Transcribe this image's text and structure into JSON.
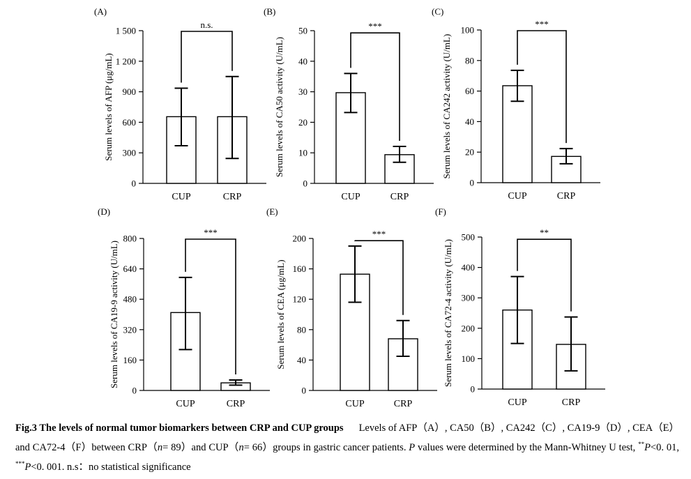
{
  "chart_data": [
    {
      "panel": "(A)",
      "type": "bar",
      "categories": [
        "CUP",
        "CRP"
      ],
      "values": [
        655,
        655
      ],
      "errors": [
        [
          370,
          935
        ],
        [
          245,
          1050
        ]
      ],
      "ylabel": "Serum levels of AFP (μg/mL)",
      "ylim": [
        0,
        1500
      ],
      "ticks": [
        0,
        300,
        600,
        900,
        1200,
        1500
      ],
      "tick_labels": [
        "0",
        "300",
        "600",
        "900",
        "1 200",
        "1 500"
      ],
      "sig": "n.s.",
      "bracket_y": 1500
    },
    {
      "panel": "(B)",
      "type": "bar",
      "categories": [
        "CUP",
        "CRP"
      ],
      "values": [
        29.7,
        9.4
      ],
      "errors": [
        [
          23.2,
          36.0
        ],
        [
          6.9,
          12.1
        ]
      ],
      "ylabel": "Serum levels of CA50 activity (U/mL)",
      "ylim": [
        0,
        50
      ],
      "ticks": [
        0,
        10,
        20,
        30,
        40,
        50
      ],
      "tick_labels": [
        "0",
        "10",
        "20",
        "30",
        "40",
        "50"
      ],
      "sig": "***",
      "bracket_y": 49.5
    },
    {
      "panel": "(C)",
      "type": "bar",
      "categories": [
        "CUP",
        "CRP"
      ],
      "values": [
        63.5,
        17.2
      ],
      "errors": [
        [
          53.3,
          73.6
        ],
        [
          12.4,
          22.3
        ]
      ],
      "ylabel": "Serum levels of CA242 activity (U/mL)",
      "ylim": [
        0,
        100
      ],
      "ticks": [
        0,
        20,
        40,
        60,
        80,
        100
      ],
      "tick_labels": [
        "0",
        "20",
        "40",
        "60",
        "80",
        "100"
      ],
      "sig": "***",
      "bracket_y": 100
    },
    {
      "panel": "(D)",
      "type": "bar",
      "categories": [
        "CUP",
        "CRP"
      ],
      "values": [
        410,
        40
      ],
      "errors": [
        [
          215,
          595
        ],
        [
          28,
          55
        ]
      ],
      "ylabel": "Serum levels of CA19-9 activity (U/mL)",
      "ylim": [
        0,
        800
      ],
      "ticks": [
        0,
        160,
        320,
        480,
        640,
        800
      ],
      "tick_labels": [
        "0",
        "160",
        "320",
        "480",
        "640",
        "800"
      ],
      "sig": "***",
      "bracket_y": 800
    },
    {
      "panel": "(E)",
      "type": "bar",
      "categories": [
        "CUP",
        "CRP"
      ],
      "values": [
        153,
        68
      ],
      "errors": [
        [
          116,
          190
        ],
        [
          45,
          92
        ]
      ],
      "ylabel": "Serum levels of CEA (μg/mL)",
      "ylim": [
        0,
        200
      ],
      "ticks": [
        0,
        40,
        80,
        120,
        160,
        200
      ],
      "tick_labels": [
        "0",
        "40",
        "80",
        "120",
        "160",
        "200"
      ],
      "sig": "***",
      "bracket_y": 198
    },
    {
      "panel": "(F)",
      "type": "bar",
      "categories": [
        "CUP",
        "CRP"
      ],
      "values": [
        260,
        147
      ],
      "errors": [
        [
          150,
          370
        ],
        [
          60,
          237
        ]
      ],
      "ylabel": "Serum levels of CA72-4 activity (U/mL)",
      "ylim": [
        0,
        500
      ],
      "ticks": [
        0,
        100,
        200,
        300,
        400,
        500
      ],
      "tick_labels": [
        "0",
        "100",
        "200",
        "300",
        "400",
        "500"
      ],
      "sig": "**",
      "bracket_y": 495
    }
  ],
  "caption": {
    "title": "Fig.3   The levels of normal tumor biomarkers between CRP and CUP groups",
    "p1": "Levels of AFP（A）, CA50（B）, CA242（C）, CA19-9（D）, CEA（E）and CA72-4（F）between CRP（",
    "n": "n",
    "p2": "= 89）and CUP（",
    "p3": "= 66）groups in gastric cancer patients. ",
    "P": "P",
    "p4": "values were determined by the Mann-Whitney U test, ",
    "star2": "**",
    "p5": "<0. 01, ",
    "star3": "***",
    "p6": "<0. 001. n.s：no statistical significance"
  }
}
